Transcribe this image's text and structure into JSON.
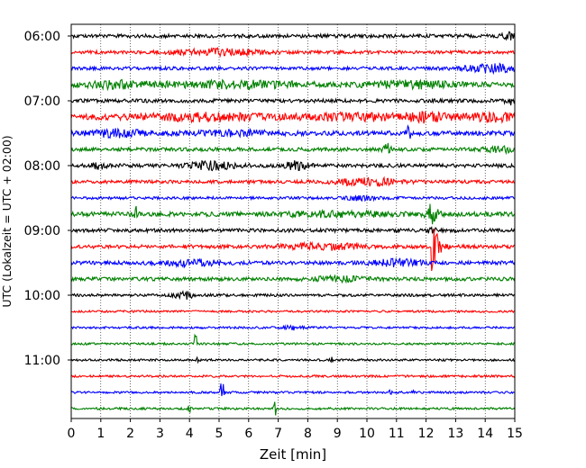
{
  "chart_data": {
    "type": "line",
    "title": "",
    "xlabel": "Zeit  [min]",
    "ylabel": "UTC (Lokalzeit = UTC + 02:00)",
    "xlim": [
      0,
      15
    ],
    "x_ticks": [
      0,
      1,
      2,
      3,
      4,
      5,
      6,
      7,
      8,
      9,
      10,
      11,
      12,
      13,
      14,
      15
    ],
    "y_tick_labels": [
      "06:00",
      "07:00",
      "08:00",
      "09:00",
      "10:00",
      "11:00"
    ],
    "grid": "vertical dotted",
    "colors": [
      "#000000",
      "#ff0000",
      "#0000ff",
      "#008000"
    ],
    "traces": [
      {
        "start": "06:00",
        "color": "#000000",
        "amp": 2.0,
        "bursts": [
          [
            14.8,
            0.3,
            3
          ]
        ]
      },
      {
        "start": "06:15",
        "color": "#ff0000",
        "amp": 1.8,
        "bursts": [
          [
            5.0,
            1.5,
            3
          ]
        ]
      },
      {
        "start": "06:30",
        "color": "#0000ff",
        "amp": 1.8,
        "bursts": [
          [
            14.2,
            0.9,
            4
          ]
        ]
      },
      {
        "start": "06:45",
        "color": "#008000",
        "amp": 2.5,
        "bursts": [
          [
            1.5,
            1.0,
            3
          ],
          [
            5.5,
            2.5,
            3
          ],
          [
            11.5,
            1.5,
            3
          ]
        ]
      },
      {
        "start": "07:00",
        "color": "#000000",
        "amp": 2.0,
        "bursts": [
          [
            14.9,
            0.2,
            4
          ]
        ]
      },
      {
        "start": "07:15",
        "color": "#ff0000",
        "amp": 3.0,
        "bursts": [
          [
            4.5,
            2.0,
            3
          ],
          [
            9.5,
            1.5,
            3
          ],
          [
            12.0,
            0.8,
            4
          ],
          [
            14.2,
            0.8,
            4
          ]
        ]
      },
      {
        "start": "07:30",
        "color": "#0000ff",
        "amp": 2.5,
        "bursts": [
          [
            1.5,
            1.0,
            3
          ],
          [
            5.5,
            1.5,
            2
          ],
          [
            11.4,
            0.1,
            8
          ]
        ]
      },
      {
        "start": "07:45",
        "color": "#008000",
        "amp": 2.0,
        "bursts": [
          [
            10.7,
            0.15,
            6
          ],
          [
            14.5,
            0.5,
            3
          ]
        ]
      },
      {
        "start": "08:00",
        "color": "#000000",
        "amp": 2.0,
        "bursts": [
          [
            1.0,
            0.3,
            3
          ],
          [
            4.8,
            0.8,
            4
          ],
          [
            7.6,
            0.4,
            4
          ]
        ]
      },
      {
        "start": "08:15",
        "color": "#ff0000",
        "amp": 1.8,
        "bursts": [
          [
            10.0,
            1.0,
            4
          ]
        ]
      },
      {
        "start": "08:30",
        "color": "#0000ff",
        "amp": 1.5,
        "bursts": [
          [
            9.8,
            0.5,
            2
          ]
        ]
      },
      {
        "start": "08:45",
        "color": "#008000",
        "amp": 2.5,
        "bursts": [
          [
            2.2,
            0.05,
            8
          ],
          [
            9.0,
            2.0,
            2
          ],
          [
            12.2,
            0.2,
            10
          ]
        ]
      },
      {
        "start": "09:00",
        "color": "#000000",
        "amp": 2.0,
        "bursts": [
          [
            12.2,
            0.15,
            3
          ]
        ]
      },
      {
        "start": "09:15",
        "color": "#ff0000",
        "amp": 2.0,
        "bursts": [
          [
            8.5,
            1.3,
            3
          ]
        ],
        "quake": [
          12.2,
          62
        ]
      },
      {
        "start": "09:30",
        "color": "#0000ff",
        "amp": 2.0,
        "bursts": [
          [
            4.0,
            1.0,
            3
          ],
          [
            11.0,
            0.8,
            3
          ]
        ]
      },
      {
        "start": "09:45",
        "color": "#008000",
        "amp": 2.0,
        "bursts": [
          [
            9.0,
            1.0,
            2
          ]
        ]
      },
      {
        "start": "10:00",
        "color": "#000000",
        "amp": 1.5,
        "bursts": [
          [
            3.8,
            0.3,
            4
          ]
        ]
      },
      {
        "start": "10:15",
        "color": "#ff0000",
        "amp": 1.2,
        "bursts": []
      },
      {
        "start": "10:30",
        "color": "#0000ff",
        "amp": 1.2,
        "bursts": [
          [
            7.5,
            0.3,
            2
          ]
        ]
      },
      {
        "start": "10:45",
        "color": "#008000",
        "amp": 1.2,
        "bursts": [
          [
            4.2,
            0.05,
            12
          ]
        ]
      },
      {
        "start": "11:00",
        "color": "#000000",
        "amp": 1.2,
        "bursts": [
          [
            4.3,
            0.05,
            4
          ],
          [
            8.8,
            0.05,
            4
          ]
        ]
      },
      {
        "start": "11:15",
        "color": "#ff0000",
        "amp": 1.2,
        "bursts": []
      },
      {
        "start": "11:30",
        "color": "#0000ff",
        "amp": 1.2,
        "bursts": [
          [
            5.1,
            0.05,
            22
          ],
          [
            10.8,
            0.05,
            4
          ],
          [
            11.6,
            0.05,
            4
          ]
        ]
      },
      {
        "start": "11:45",
        "color": "#008000",
        "amp": 1.2,
        "bursts": [
          [
            4.0,
            0.05,
            4
          ],
          [
            6.9,
            0.05,
            7
          ]
        ]
      }
    ]
  }
}
